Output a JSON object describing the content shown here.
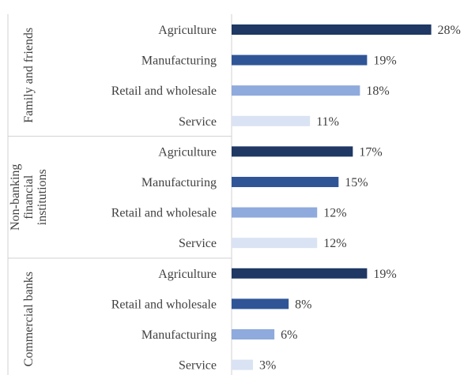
{
  "chart_data": {
    "type": "bar",
    "orientation": "horizontal",
    "title": "",
    "xlabel": "",
    "ylabel": "",
    "xlim": [
      0,
      0.28
    ],
    "grid": false,
    "legend": "none",
    "value_format": "percent",
    "groups": [
      {
        "name": "Family and friends",
        "categories": [
          "Agriculture",
          "Manufacturing",
          "Retail and wholesale",
          "Service"
        ],
        "values": [
          0.28,
          0.19,
          0.18,
          0.11
        ],
        "labels": [
          "28%",
          "19%",
          "18%",
          "11%"
        ]
      },
      {
        "name": "Non-banking financial institutions",
        "name_lines": [
          "Non-banking",
          "financial",
          "institutions"
        ],
        "categories": [
          "Agriculture",
          "Manufacturing",
          "Retail and wholesale",
          "Service"
        ],
        "values": [
          0.17,
          0.15,
          0.12,
          0.12
        ],
        "labels": [
          "17%",
          "15%",
          "12%",
          "12%"
        ]
      },
      {
        "name": "Commercial banks",
        "categories": [
          "Agriculture",
          "Retail and wholesale",
          "Manufacturing",
          "Service"
        ],
        "values": [
          0.19,
          0.08,
          0.06,
          0.03
        ],
        "labels": [
          "19%",
          "8%",
          "6%",
          "3%"
        ]
      }
    ],
    "bar_colors": [
      "#1f3864",
      "#2f5597",
      "#8faadc",
      "#dae3f3"
    ]
  }
}
